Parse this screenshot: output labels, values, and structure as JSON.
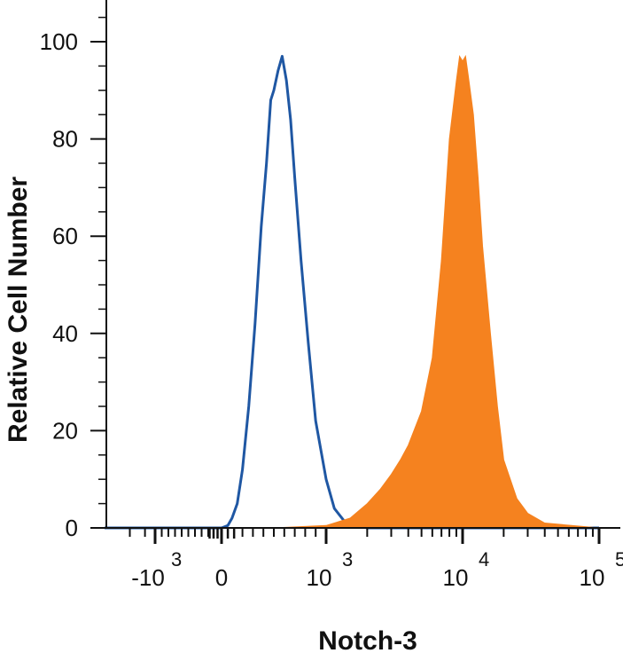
{
  "chart_data": {
    "type": "area",
    "title": "",
    "xlabel": "Notch-3",
    "ylabel": "Relative Cell Number",
    "xscale": "biexponential (log with linear region around 0)",
    "xlim": [
      -2000,
      100000
    ],
    "ylim": [
      0,
      100
    ],
    "y_ticks": [
      0,
      20,
      40,
      60,
      80,
      100
    ],
    "y_tick_labels": [
      "0",
      "20",
      "40",
      "60",
      "80",
      "100"
    ],
    "x_ticks": [
      {
        "value": -1000,
        "base": "-10",
        "exp": "3"
      },
      {
        "value": 0,
        "base": "0",
        "exp": ""
      },
      {
        "value": 1000,
        "base": "10",
        "exp": "3"
      },
      {
        "value": 10000,
        "base": "10",
        "exp": "4"
      },
      {
        "value": 100000,
        "base": "10",
        "exp": "5"
      }
    ],
    "grid": false,
    "legend": "none",
    "series": [
      {
        "style": "outline",
        "color": "#1f57a3",
        "x": [
          -2000,
          0,
          60,
          100,
          150,
          200,
          260,
          320,
          380,
          430,
          470,
          500,
          540,
          580,
          620,
          660,
          700,
          760,
          830,
          900,
          1000,
          1150,
          1350,
          1700,
          2000,
          100000
        ],
        "y": [
          0,
          0,
          0.5,
          2,
          5,
          12,
          25,
          42,
          62,
          75,
          88,
          90,
          94,
          97,
          92,
          84,
          72,
          55,
          38,
          22,
          10,
          4,
          1.5,
          0.5,
          0,
          0
        ]
      },
      {
        "style": "filled",
        "color": "#f5821f",
        "x": [
          -2000,
          500,
          1000,
          1500,
          2000,
          2500,
          3000,
          3500,
          4000,
          5000,
          6000,
          7000,
          8000,
          9000,
          9500,
          10000,
          10500,
          11000,
          12000,
          13000,
          14000,
          16000,
          18000,
          20000,
          25000,
          30000,
          40000,
          100000
        ],
        "y": [
          0,
          0,
          0.5,
          2,
          5,
          8,
          11,
          14,
          17,
          24,
          35,
          55,
          80,
          92,
          97,
          96,
          97,
          93,
          85,
          72,
          58,
          40,
          25,
          14,
          6,
          3,
          1,
          0
        ]
      }
    ]
  }
}
